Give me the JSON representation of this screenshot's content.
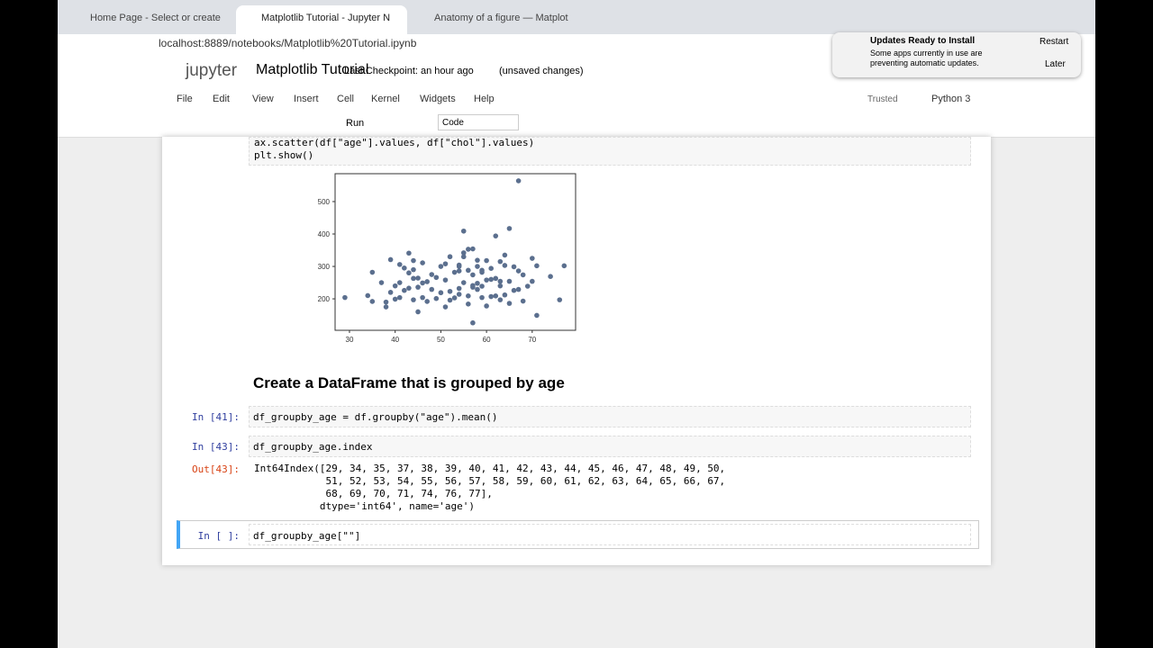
{
  "browser": {
    "tabs": [
      "Home Page - Select or create",
      "Matplotlib Tutorial - Jupyter N",
      "Anatomy of a figure — Matplot"
    ],
    "url": "localhost:8889/notebooks/Matplotlib%20Tutorial.ipynb"
  },
  "notification": {
    "title": "Updates Ready to Install",
    "body": "Some apps currently in use are preventing automatic updates.",
    "restart": "Restart",
    "later": "Later"
  },
  "header": {
    "logo": "jupyter",
    "title": "Matplotlib Tutorial",
    "checkpoint": "Last Checkpoint: an hour ago",
    "unsaved": "(unsaved changes)"
  },
  "menu": [
    "File",
    "Edit",
    "View",
    "Insert",
    "Cell",
    "Kernel",
    "Widgets",
    "Help"
  ],
  "toolbar": {
    "run": "Run",
    "cell_type": "Code",
    "trusted": "Trusted",
    "kernel": "Python 3"
  },
  "cells": {
    "scatter_code": [
      "ax.scatter(df[\"age\"].values, df[\"chol\"].values)",
      "plt.show()"
    ],
    "plot": {
      "type": "scatter",
      "color": "#5b6f8e",
      "xlim": [
        26.85,
        79.5
      ],
      "ylim": [
        103,
        586
      ],
      "xticks": [
        30,
        40,
        50,
        60,
        70
      ],
      "yticks": [
        200,
        300,
        400,
        500
      ],
      "x": [
        29,
        34,
        35,
        35,
        37,
        38,
        39,
        39,
        40,
        40,
        41,
        41,
        41,
        42,
        42,
        43,
        43,
        44,
        44,
        44,
        45,
        45,
        45,
        46,
        46,
        47,
        47,
        48,
        48,
        49,
        49,
        50,
        50,
        51,
        51,
        51,
        52,
        52,
        52,
        53,
        53,
        54,
        54,
        54,
        54,
        55,
        55,
        55,
        56,
        56,
        56,
        56,
        57,
        57,
        57,
        57,
        58,
        58,
        58,
        58,
        59,
        59,
        59,
        60,
        60,
        60,
        61,
        61,
        61,
        62,
        62,
        62,
        63,
        63,
        63,
        64,
        64,
        65,
        65,
        65,
        66,
        66,
        67,
        67,
        67,
        68,
        68,
        69,
        70,
        70,
        71,
        71,
        74,
        76,
        77,
        57,
        55,
        64,
        63,
        59,
        44,
        43,
        38,
        46,
        54
      ],
      "y": [
        204,
        210,
        282,
        192,
        250,
        175,
        220,
        321,
        199,
        240,
        250,
        204,
        306,
        226,
        295,
        233,
        341,
        290,
        197,
        263,
        236,
        264,
        160,
        204,
        311,
        253,
        192,
        229,
        275,
        201,
        266,
        219,
        300,
        258,
        175,
        308,
        223,
        330,
        196,
        282,
        203,
        232,
        286,
        214,
        304,
        409,
        250,
        342,
        209,
        288,
        184,
        353,
        236,
        126,
        274,
        241,
        229,
        319,
        300,
        248,
        204,
        282,
        239,
        258,
        318,
        178,
        207,
        260,
        294,
        263,
        209,
        394,
        197,
        315,
        254,
        212,
        335,
        417,
        254,
        186,
        226,
        299,
        229,
        564,
        286,
        193,
        274,
        239,
        254,
        325,
        149,
        302,
        269,
        197,
        302,
        354,
        330,
        303,
        240,
        288,
        318,
        280,
        190,
        249,
        300
      ]
    },
    "heading": "Create a DataFrame that is grouped by age",
    "c41": {
      "prompt": "In [41]:",
      "code": "df_groupby_age = df.groupby(\"age\").mean()"
    },
    "c43": {
      "prompt": "In [43]:",
      "code": "df_groupby_age.index",
      "out_prompt": "Out[43]:",
      "output": [
        "Int64Index([29, 34, 35, 37, 38, 39, 40, 41, 42, 43, 44, 45, 46, 47, 48, 49, 50,",
        "            51, 52, 53, 54, 55, 56, 57, 58, 59, 60, 61, 62, 63, 64, 65, 66, 67,",
        "            68, 69, 70, 71, 74, 76, 77],",
        "           dtype='int64', name='age')"
      ]
    },
    "current": {
      "prompt": "In [ ]:",
      "code": "df_groupby_age[\"\"]"
    }
  }
}
